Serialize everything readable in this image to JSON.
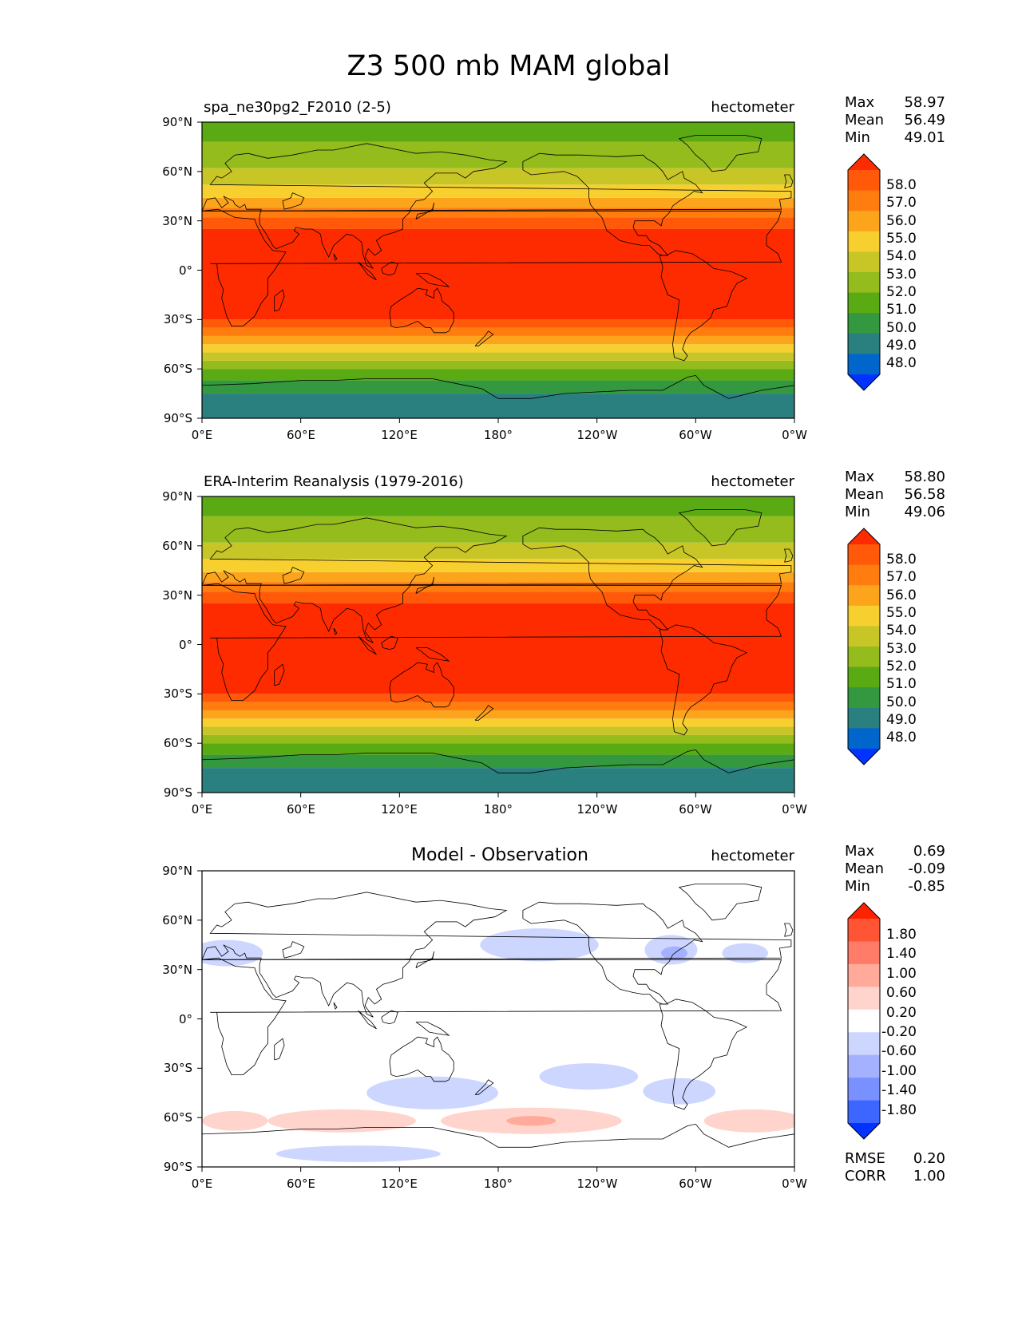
{
  "figure": {
    "title": "Z3 500 mb MAM global"
  },
  "colors": {
    "abs_levels": [
      "#0033ff",
      "#0066cc",
      "#2a7f7f",
      "#33983f",
      "#5aaa14",
      "#94bc1d",
      "#c8c627",
      "#f7cf2f",
      "#fca41b",
      "#ff7d0f",
      "#ff5909",
      "#ff2b00"
    ],
    "diff_levels": [
      "#0033ff",
      "#3c66ff",
      "#7891ff",
      "#a4b1ff",
      "#cdd6ff",
      "#ffffff",
      "#ffd4cc",
      "#ffaa9a",
      "#ff7c68",
      "#ff5534",
      "#ff2200"
    ],
    "land_outline": "#000000"
  },
  "chart_data": [
    {
      "type": "contour_map",
      "title": "spa_ne30pg2_F2010 (2-5)",
      "units": "hectometer",
      "stats": {
        "max_label": "Max",
        "max": "58.97",
        "mean_label": "Mean",
        "mean": "56.49",
        "min_label": "Min",
        "min": "49.01"
      },
      "xticks": [
        "0°E",
        "60°E",
        "120°E",
        "180°",
        "120°W",
        "60°W",
        "0°W"
      ],
      "yticks": [
        "90°N",
        "60°N",
        "30°N",
        "0°",
        "30°S",
        "60°S",
        "90°S"
      ],
      "colorbar": {
        "levels": [
          "58.0",
          "57.0",
          "56.0",
          "55.0",
          "54.0",
          "53.0",
          "52.0",
          "51.0",
          "50.0",
          "49.0",
          "48.0"
        ],
        "extend": "both"
      },
      "xlim": [
        0,
        360
      ],
      "ylim": [
        -90,
        90
      ]
    },
    {
      "type": "contour_map",
      "title": "ERA-Interim Reanalysis (1979-2016)",
      "units": "hectometer",
      "stats": {
        "max_label": "Max",
        "max": "58.80",
        "mean_label": "Mean",
        "mean": "56.58",
        "min_label": "Min",
        "min": "49.06"
      },
      "xticks": [
        "0°E",
        "60°E",
        "120°E",
        "180°",
        "120°W",
        "60°W",
        "0°W"
      ],
      "yticks": [
        "90°N",
        "60°N",
        "30°N",
        "0°",
        "30°S",
        "60°S",
        "90°S"
      ],
      "colorbar": {
        "levels": [
          "58.0",
          "57.0",
          "56.0",
          "55.0",
          "54.0",
          "53.0",
          "52.0",
          "51.0",
          "50.0",
          "49.0",
          "48.0"
        ],
        "extend": "both"
      },
      "xlim": [
        0,
        360
      ],
      "ylim": [
        -90,
        90
      ]
    },
    {
      "type": "contour_map",
      "title": "Model - Observation",
      "units": "hectometer",
      "stats": {
        "max_label": "Max",
        "max": "0.69",
        "mean_label": "Mean",
        "mean": "-0.09",
        "min_label": "Min",
        "min": "-0.85"
      },
      "extra_stats": {
        "rmse_label": "RMSE",
        "rmse": "0.20",
        "corr_label": "CORR",
        "corr": "1.00"
      },
      "xticks": [
        "0°E",
        "60°E",
        "120°E",
        "180°",
        "120°W",
        "60°W",
        "0°W"
      ],
      "yticks": [
        "90°N",
        "60°N",
        "30°N",
        "0°",
        "30°S",
        "60°S",
        "90°S"
      ],
      "colorbar": {
        "levels": [
          "1.80",
          "1.40",
          "1.00",
          "0.60",
          "0.20",
          "-0.20",
          "-0.60",
          "-1.00",
          "-1.40",
          "-1.80"
        ],
        "extend": "both"
      },
      "xlim": [
        0,
        360
      ],
      "ylim": [
        -90,
        90
      ]
    }
  ]
}
